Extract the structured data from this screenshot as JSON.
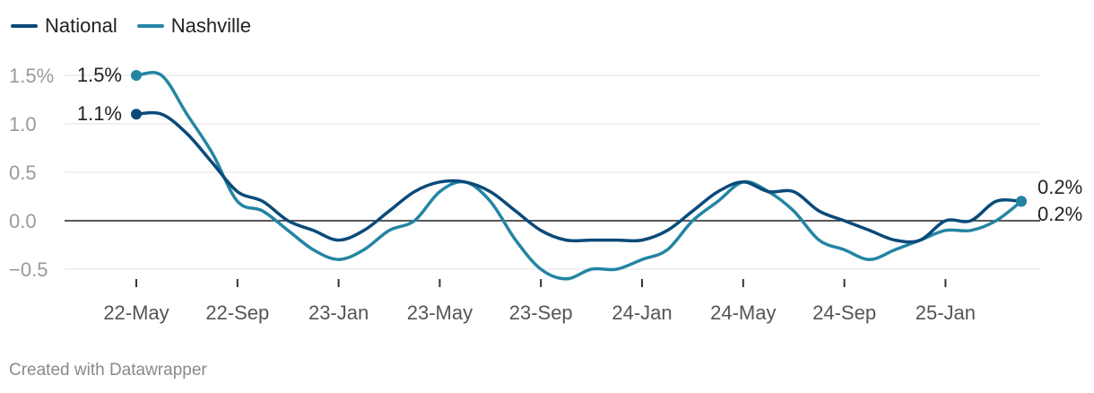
{
  "chart_data": {
    "type": "line",
    "ylim": [
      -0.5,
      1.5
    ],
    "yticks": [
      {
        "value": 1.5,
        "label": "1.5%"
      },
      {
        "value": 1.0,
        "label": "1.0"
      },
      {
        "value": 0.5,
        "label": "0.5"
      },
      {
        "value": 0.0,
        "label": "0.0"
      },
      {
        "value": -0.5,
        "label": "−0.5"
      }
    ],
    "xticks": [
      "22-May",
      "22-Sep",
      "23-Jan",
      "23-May",
      "23-Sep",
      "24-Jan",
      "24-May",
      "24-Sep",
      "25-Jan"
    ],
    "x": [
      "2022-05",
      "2022-06",
      "2022-07",
      "2022-08",
      "2022-09",
      "2022-10",
      "2022-11",
      "2022-12",
      "2023-01",
      "2023-02",
      "2023-03",
      "2023-04",
      "2023-05",
      "2023-06",
      "2023-07",
      "2023-08",
      "2023-09",
      "2023-10",
      "2023-11",
      "2023-12",
      "2024-01",
      "2024-02",
      "2024-03",
      "2024-04",
      "2024-05",
      "2024-06",
      "2024-07",
      "2024-08",
      "2024-09",
      "2024-10",
      "2024-11",
      "2024-12",
      "2025-01",
      "2025-02",
      "2025-03",
      "2025-04"
    ],
    "series": [
      {
        "name": "National",
        "color": "#0a4a7a",
        "values": [
          1.1,
          1.1,
          0.9,
          0.6,
          0.3,
          0.2,
          0.0,
          -0.1,
          -0.2,
          -0.1,
          0.1,
          0.3,
          0.4,
          0.4,
          0.3,
          0.1,
          -0.1,
          -0.2,
          -0.2,
          -0.2,
          -0.2,
          -0.1,
          0.1,
          0.3,
          0.4,
          0.3,
          0.3,
          0.1,
          0.0,
          -0.1,
          -0.2,
          -0.2,
          0.0,
          0.0,
          0.2,
          0.2
        ],
        "end_label": "0.2%",
        "start_label": "1.1%"
      },
      {
        "name": "Nashville",
        "color": "#2385a3",
        "values": [
          1.5,
          1.5,
          1.1,
          0.7,
          0.2,
          0.1,
          -0.1,
          -0.3,
          -0.4,
          -0.3,
          -0.1,
          0.0,
          0.3,
          0.4,
          0.2,
          -0.2,
          -0.5,
          -0.6,
          -0.5,
          -0.5,
          -0.4,
          -0.3,
          0.0,
          0.2,
          0.4,
          0.3,
          0.1,
          -0.2,
          -0.3,
          -0.4,
          -0.3,
          -0.2,
          -0.1,
          -0.1,
          0.0,
          0.2
        ],
        "end_label": "0.2%",
        "start_label": "1.5%"
      }
    ]
  },
  "footer": "Created with Datawrapper"
}
